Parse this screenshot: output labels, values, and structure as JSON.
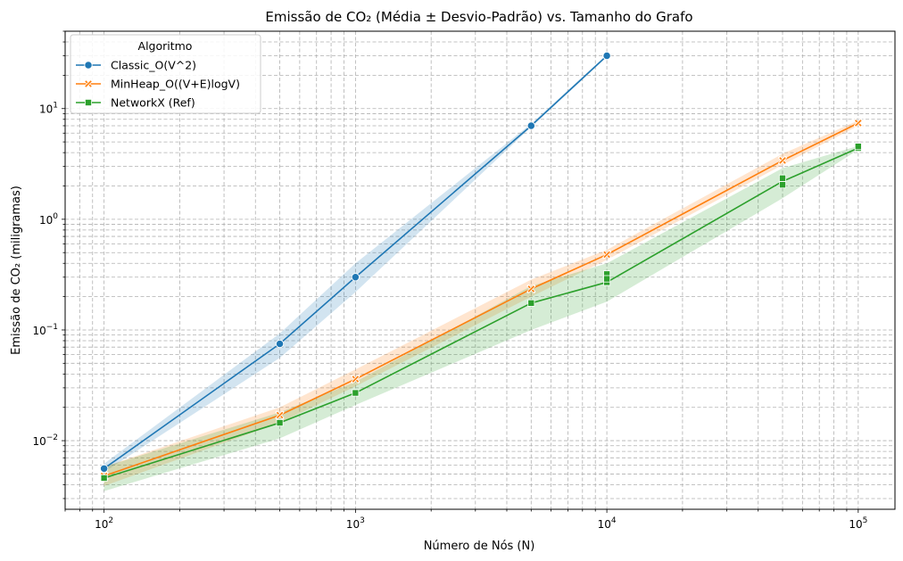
{
  "chart_data": {
    "type": "line",
    "title": "Emissão de CO₂ (Média ± Desvio-Padrão) vs. Tamanho do Grafo",
    "xlabel": "Número de Nós (N)",
    "ylabel": "Emissão de CO₂ (miligramas)",
    "x_scale": "log",
    "y_scale": "log",
    "xlim": [
      70,
      140000
    ],
    "ylim": [
      0.0024,
      50
    ],
    "x_ticks": [
      {
        "value": 100,
        "base": "10",
        "exp": "2"
      },
      {
        "value": 1000,
        "base": "10",
        "exp": "3"
      },
      {
        "value": 10000,
        "base": "10",
        "exp": "4"
      },
      {
        "value": 100000,
        "base": "10",
        "exp": "5"
      }
    ],
    "y_ticks": [
      {
        "value": 0.01,
        "base": "10",
        "exp": "−2"
      },
      {
        "value": 0.1,
        "base": "10",
        "exp": "−1"
      },
      {
        "value": 1,
        "base": "10",
        "exp": "0"
      },
      {
        "value": 10,
        "base": "10",
        "exp": "1"
      }
    ],
    "grid": true,
    "legend": {
      "title": "Algoritmo",
      "placement": "top-left"
    },
    "series": [
      {
        "name": "Classic_O(V^2)",
        "color": "#1f77b4",
        "marker": "circle",
        "points": [
          {
            "x": 100,
            "y": 0.0056,
            "lo": 0.0052,
            "hi": 0.0062
          },
          {
            "x": 500,
            "y": 0.075,
            "lo": 0.056,
            "hi": 0.093
          },
          {
            "x": 1000,
            "y": 0.3,
            "lo": 0.22,
            "hi": 0.4
          },
          {
            "x": 5000,
            "y": 7.0,
            "lo": 6.8,
            "hi": 7.3
          },
          {
            "x": 10000,
            "y": 30.0,
            "lo": 29.2,
            "hi": 30.8
          }
        ]
      },
      {
        "name": "MinHeap_O((V+E)logV)",
        "color": "#ff7f0e",
        "marker": "x",
        "points": [
          {
            "x": 100,
            "y": 0.0048,
            "lo": 0.0039,
            "hi": 0.0058
          },
          {
            "x": 500,
            "y": 0.017,
            "lo": 0.0145,
            "hi": 0.02
          },
          {
            "x": 1000,
            "y": 0.036,
            "lo": 0.031,
            "hi": 0.044
          },
          {
            "x": 5000,
            "y": 0.235,
            "lo": 0.2,
            "hi": 0.285
          },
          {
            "x": 10000,
            "y": 0.48,
            "lo": 0.43,
            "hi": 0.53
          },
          {
            "x": 50000,
            "y": 3.4,
            "lo": 3.1,
            "hi": 3.9
          },
          {
            "x": 100000,
            "y": 7.4,
            "lo": 7.0,
            "hi": 7.8
          }
        ]
      },
      {
        "name": "NetworkX (Ref)",
        "color": "#2ca02c",
        "marker": "square",
        "points": [
          {
            "x": 100,
            "y": 0.0046,
            "lo": 0.0035,
            "hi": 0.0058
          },
          {
            "x": 500,
            "y": 0.0145,
            "lo": 0.0105,
            "hi": 0.018
          },
          {
            "x": 1000,
            "y": 0.027,
            "lo": 0.021,
            "hi": 0.034
          },
          {
            "x": 5000,
            "y": 0.175,
            "lo": 0.1,
            "hi": 0.25
          },
          {
            "x": 10000,
            "y": 0.27,
            "lo": 0.18,
            "hi": 0.4
          },
          {
            "x": 50000,
            "y": 2.2,
            "lo": 1.55,
            "hi": 2.9
          },
          {
            "x": 100000,
            "y": 4.4,
            "lo": 4.25,
            "hi": 4.6
          }
        ],
        "extra_markers": [
          {
            "x": 10000,
            "y": 0.32
          },
          {
            "x": 10000,
            "y": 0.29
          },
          {
            "x": 50000,
            "y": 2.35
          },
          {
            "x": 50000,
            "y": 2.05
          },
          {
            "x": 100000,
            "y": 4.55
          }
        ]
      }
    ]
  }
}
